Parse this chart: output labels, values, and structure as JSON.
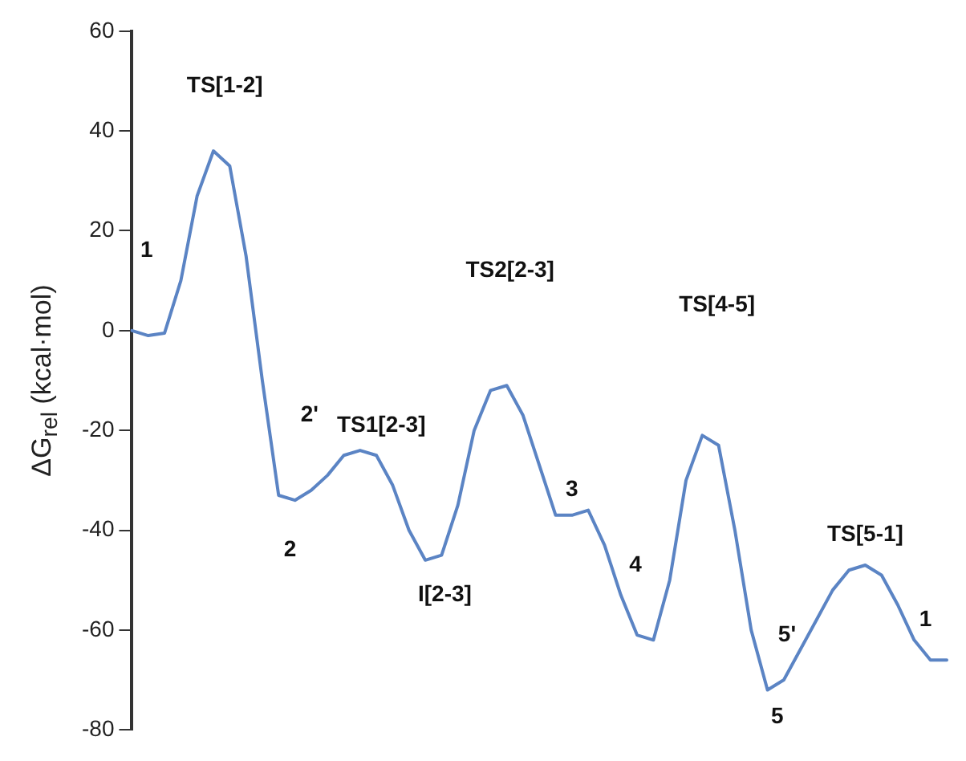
{
  "chart_data": {
    "type": "line",
    "ylabel": "ΔG$_{rel}$ (kcal·mol)",
    "categories": [
      null,
      null,
      null,
      null,
      null,
      null,
      null,
      null,
      null,
      null,
      null,
      null,
      null,
      null,
      null,
      null,
      null,
      null,
      null,
      null,
      null,
      null,
      null,
      null,
      null,
      null,
      null,
      null,
      null,
      null,
      null,
      null,
      null,
      null,
      null,
      null,
      null,
      null,
      null,
      null,
      null,
      null,
      null,
      null,
      null,
      null,
      null,
      null,
      null,
      null,
      null
    ],
    "series": [
      {
        "color": "#5b84c4",
        "values": [
          0,
          -1,
          -0.5,
          10,
          27,
          36,
          33,
          15,
          -10,
          -33,
          -34,
          -32,
          -29,
          -25,
          -24,
          -25,
          -31,
          -40,
          -46,
          -45,
          -35,
          -20,
          -12,
          -11,
          -17,
          -27,
          -37,
          -37,
          -36,
          -43,
          -53,
          -61,
          -62,
          -50,
          -30,
          -21,
          -23,
          -40,
          -60,
          -72,
          -70,
          -64,
          -58,
          -52,
          -48,
          -47,
          -49,
          -55,
          -62,
          -66,
          -66
        ]
      }
    ],
    "annotations": [
      "1",
      "TS[1-2]",
      "2'",
      "2",
      "TS1[2-3]",
      "I[2-3]",
      "TS2[2-3]",
      "3",
      "4",
      "TS[4-5]",
      "5'",
      "5",
      "TS[5-1]",
      "1"
    ],
    "ylim": [
      -80,
      60
    ],
    "yticks": [
      -80,
      -60,
      -40,
      -20,
      0,
      20,
      40,
      60
    ],
    "grid": false,
    "legend": false,
    "marker": "none",
    "line_style": "solid",
    "tick_labels": "y"
  }
}
